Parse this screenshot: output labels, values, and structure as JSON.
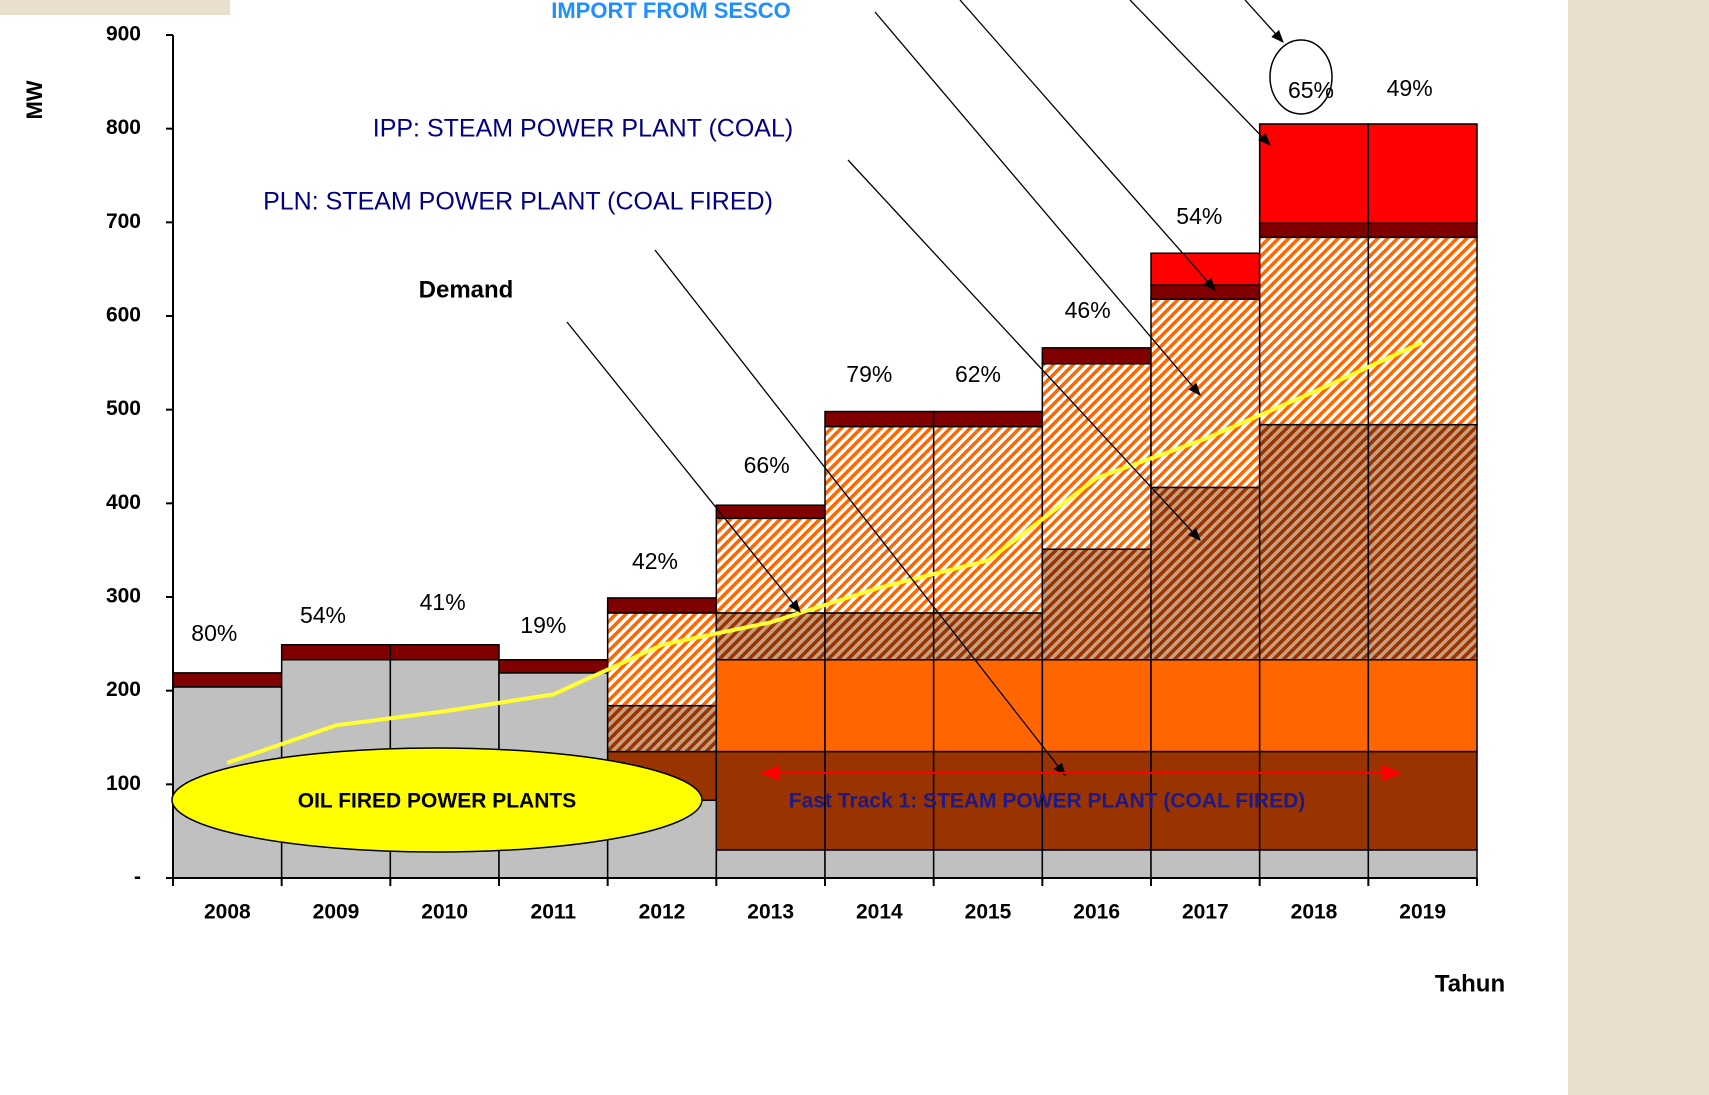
{
  "chart_data": {
    "type": "stacked_bar",
    "y_label": "MW",
    "x_label": "Tahun",
    "categories": [
      "2008",
      "2009",
      "2010",
      "2011",
      "2012",
      "2013",
      "2014",
      "2015",
      "2016",
      "2017",
      "2018",
      "2019"
    ],
    "ylim": [
      0,
      900
    ],
    "yticks": [
      {
        "value": 0,
        "label": "-"
      },
      100,
      200,
      300,
      400,
      500,
      600,
      700,
      800,
      900
    ],
    "series": [
      {
        "name": "OIL FIRED POWER PLANTS",
        "color": "#c0c0c0",
        "values": [
          204,
          233,
          233,
          219,
          83,
          30,
          30,
          30,
          30,
          30,
          30,
          30
        ]
      },
      {
        "name": "Fast Track 1: STEAM POWER PLANT (COAL FIRED)",
        "color": "#993300",
        "values": [
          0,
          0,
          0,
          0,
          52,
          105,
          105,
          105,
          105,
          105,
          105,
          105
        ]
      },
      {
        "color": "#ff6600",
        "values": [
          0,
          0,
          0,
          0,
          0,
          98,
          98,
          98,
          98,
          98,
          98,
          98
        ]
      },
      {
        "name": "PLN: STEAM POWER PLANT (COAL FIRED)",
        "color": "#993300",
        "hatch": true,
        "values": [
          0,
          0,
          0,
          0,
          49,
          50,
          50,
          50,
          118,
          184,
          251,
          251
        ]
      },
      {
        "name": "IPP: STEAM POWER PLANT (COAL)",
        "color": "#ff6600",
        "hatch": true,
        "values": [
          0,
          0,
          0,
          0,
          99,
          101,
          199,
          199,
          198,
          201,
          200,
          200
        ]
      },
      {
        "color": "#800000",
        "values": [
          15,
          16,
          16,
          14,
          16,
          14,
          16,
          16,
          17,
          15,
          15,
          15
        ]
      },
      {
        "name": "IMPORT FROM SESCO",
        "color": "#ff0000",
        "values": [
          0,
          0,
          0,
          0,
          0,
          0,
          0,
          0,
          0,
          34,
          106,
          106
        ]
      }
    ],
    "demand": {
      "name": "Demand",
      "color": "#ffff33",
      "values": [
        123,
        163,
        178,
        196,
        249,
        273,
        310,
        339,
        427,
        469,
        519,
        572
      ]
    },
    "percent_labels": [
      "80%",
      "54%",
      "41%",
      "19%",
      "42%",
      "66%",
      "79%",
      "62%",
      "46%",
      "54%",
      "65%",
      "49%"
    ]
  }
}
